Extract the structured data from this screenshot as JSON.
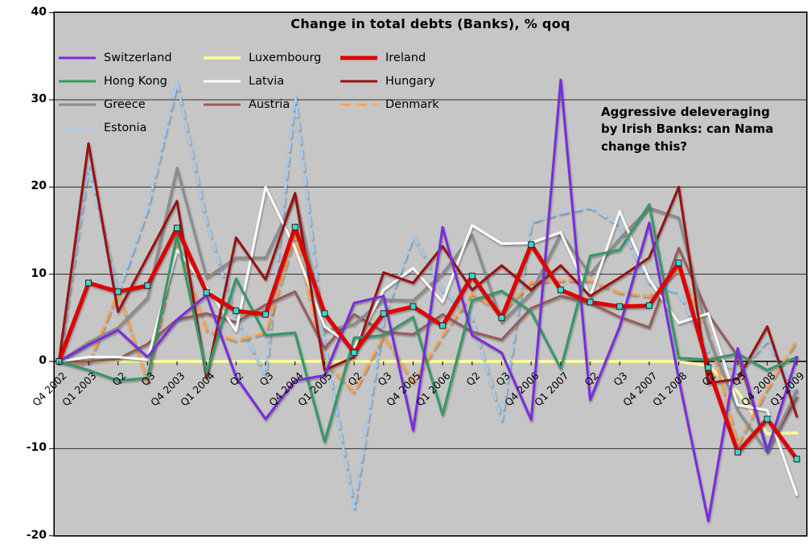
{
  "chart_data": {
    "type": "line",
    "title": "Change in total debts (Banks), % qoq",
    "annotation": "Aggressive deleveraging\nby Irish Banks: can Nama\nchange this?",
    "plot_bg_color": "#c6c6c6",
    "grid": "horizontal",
    "legend_position": "top-left",
    "ylim": [
      -20,
      40
    ],
    "y_ticks": [
      40,
      30,
      20,
      10,
      0,
      -10,
      -20
    ],
    "categories": [
      "Q4 2002",
      "Q1 2003",
      "Q2",
      "Q3",
      "Q4 2003",
      "Q1 2004",
      "Q2",
      "Q3",
      "Q4 2004",
      "Q1 2005",
      "Q2",
      "Q3",
      "Q4 2005",
      "Q1 2006",
      "Q2",
      "Q3",
      "Q4 2006",
      "Q1 2007",
      "Q2",
      "Q3",
      "Q4 2007",
      "Q1 2008",
      "Q2",
      "Q3",
      "Q4 2008",
      "Q1 2009"
    ],
    "series": [
      {
        "name": "Switzerland",
        "color": "#7a2bde",
        "width": 3,
        "values": [
          0,
          1.9,
          3.6,
          0.5,
          4.8,
          7.6,
          -1.8,
          -6.6,
          -2.2,
          -1.6,
          6.7,
          7.5,
          -7.9,
          15.4,
          3.0,
          1.0,
          -6.7,
          32.3,
          -4.4,
          4.0,
          15.9,
          -2.0,
          -18.3,
          1.5,
          -10.3,
          0.5
        ]
      },
      {
        "name": "Luxembourg",
        "color": "#ffff99",
        "width": 3.5,
        "values": [
          0,
          0,
          0,
          0,
          0,
          0,
          0,
          0,
          0,
          0,
          0,
          0,
          0,
          0,
          0,
          0,
          0,
          0,
          0,
          0,
          0,
          0,
          -0.5,
          -3.5,
          -8.3,
          -8.2
        ]
      },
      {
        "name": "Ireland",
        "color": "#de0000",
        "width": 5,
        "marker": "square",
        "marker_color": "#40d6ce",
        "values": [
          0,
          9.0,
          8.0,
          8.7,
          15.3,
          7.9,
          5.8,
          5.4,
          15.4,
          5.5,
          1.0,
          5.5,
          6.3,
          4.1,
          9.8,
          5.0,
          13.4,
          8.2,
          6.8,
          6.3,
          6.4,
          11.3,
          -0.7,
          -10.4,
          -6.6,
          -11.2
        ]
      },
      {
        "name": "Hong Kong",
        "color": "#339966",
        "width": 3,
        "values": [
          0,
          -1.0,
          -2.2,
          -1.9,
          14.5,
          -1.3,
          9.5,
          3.0,
          3.3,
          -9.2,
          2.7,
          3.0,
          5.1,
          -6.1,
          7.0,
          8.1,
          5.7,
          -0.8,
          12.1,
          12.8,
          18.0,
          0.4,
          0.2,
          0.9,
          -1.0,
          0.5
        ]
      },
      {
        "name": "Latvia",
        "color": "#ffffff",
        "width": 3,
        "values": [
          0,
          0.5,
          0.5,
          0.2,
          12.8,
          8.5,
          3.5,
          20.0,
          13.0,
          4.0,
          1.6,
          8.2,
          10.7,
          6.8,
          15.6,
          13.5,
          13.6,
          14.8,
          7.4,
          17.2,
          9.4,
          4.4,
          5.5,
          -5.0,
          -5.6,
          -15.3
        ]
      },
      {
        "name": "Hungary",
        "color": "#9a1010",
        "width": 3,
        "values": [
          0,
          25.0,
          5.7,
          12.0,
          18.4,
          -1.9,
          14.2,
          9.4,
          19.3,
          -1.0,
          0.5,
          10.2,
          9.0,
          13.2,
          8.2,
          11.0,
          8.2,
          11.0,
          7.5,
          9.6,
          11.9,
          20.0,
          -2.5,
          -2.0,
          4.0,
          -6.3
        ]
      },
      {
        "name": "Greece",
        "color": "#8c8c8c",
        "width": 3,
        "values": [
          0,
          2.2,
          3.9,
          7.3,
          22.2,
          9.6,
          11.9,
          11.9,
          19.0,
          3.5,
          4.3,
          7.1,
          7.0,
          10.1,
          14.5,
          4.5,
          7.9,
          14.7,
          10.0,
          14.1,
          17.6,
          16.5,
          2.9,
          -5.6,
          -10.4,
          -3.3
        ]
      },
      {
        "name": "Austria",
        "color": "#9a5b5b",
        "width": 3,
        "values": [
          0,
          0,
          0.3,
          2.0,
          4.8,
          5.5,
          4.5,
          6.5,
          8.0,
          1.5,
          5.4,
          3.4,
          3.1,
          5.4,
          3.4,
          2.5,
          6.1,
          7.5,
          6.7,
          5.1,
          3.9,
          13.0,
          5.4,
          0.6,
          -10.2,
          -4.2
        ]
      },
      {
        "name": "Denmark",
        "color": "#ffa34d",
        "width": 3,
        "dash": "12,7",
        "values": [
          0,
          -0.3,
          8.0,
          -2.4,
          13.6,
          3.6,
          2.4,
          3.3,
          14.5,
          0,
          -3.5,
          3.0,
          -2.4,
          3.0,
          7.8,
          5.6,
          9.1,
          9.3,
          9.3,
          7.9,
          7.5,
          10.5,
          3.3,
          -9.5,
          -3.1,
          2.5
        ]
      },
      {
        "name": "Estonia",
        "color": "#a3ccf5",
        "width": 3,
        "dash": "10,7",
        "values": [
          0,
          22.5,
          7.9,
          17.5,
          32.0,
          16.0,
          5.0,
          -1.6,
          30.5,
          2.0,
          -16.8,
          5.0,
          14.4,
          8.2,
          5.0,
          -6.7,
          16.0,
          17.0,
          17.7,
          15.6,
          9.0,
          7.9,
          1.1,
          -1.3,
          2.4,
          -4.0
        ]
      }
    ],
    "draw_order": [
      1,
      9,
      8,
      7,
      6,
      4,
      5,
      3,
      0,
      2
    ]
  }
}
